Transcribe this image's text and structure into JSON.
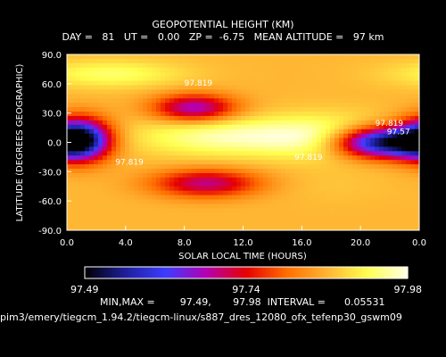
{
  "header": {
    "title": "GEOPOTENTIAL HEIGHT (KM)",
    "subtitle": "DAY =   81   UT =   0.00   ZP =  -6.75   MEAN ALTITUDE =   97 km"
  },
  "footer": {
    "minmax": "MIN,MAX =        97.49,       97.98  INTERVAL =      0.05531",
    "filepath": "pim3/emery/tiegcm_1.94.2/tiegcm-linux/s887_dres_12080_ofx_tefenp30_gswm09"
  },
  "colors": {
    "background": "#000000",
    "text": "#ffffff",
    "colormap": [
      "#ffffff",
      "#000000",
      "#1e1e9a",
      "#3c3cff",
      "#b400b4",
      "#e60000",
      "#ff6e00",
      "#ffb432",
      "#ffff50",
      "#ffffe6"
    ]
  },
  "chart_data": {
    "type": "heatmap",
    "title": "GEOPOTENTIAL HEIGHT (KM)",
    "xlabel": "SOLAR LOCAL TIME (HOURS)",
    "ylabel": "LATITUDE (DEGREES GEOGRAPHIC)",
    "x_ticks": [
      "0.0",
      "4.0",
      "8.0",
      "12.0",
      "16.0",
      "20.0",
      "0.0"
    ],
    "y_ticks": [
      "-90.0",
      "-60.0",
      "-30.0",
      "0.0",
      "30.0",
      "60.0",
      "90.0"
    ],
    "xlim": [
      0,
      24
    ],
    "ylim": [
      -90,
      90
    ],
    "value_range": [
      97.49,
      97.98
    ],
    "contour_interval": 0.05531,
    "contour_labels": [
      "97.819",
      "97.819",
      "97.819",
      "97.819",
      "97.57"
    ],
    "colorbar_ticks": [
      "97.49",
      "97.74",
      "97.98"
    ],
    "features": [
      {
        "x": 0.8,
        "y": 3,
        "value": 97.49,
        "sx": 1.5,
        "sy": 15
      },
      {
        "x": 21.4,
        "y": 0,
        "value": 97.49,
        "sx": 2.3,
        "sy": 11
      },
      {
        "x": 8.7,
        "y": 35,
        "value": 97.66,
        "sx": 2.0,
        "sy": 10
      },
      {
        "x": 9.5,
        "y": -42,
        "value": 97.69,
        "sx": 2.6,
        "sy": 10
      },
      {
        "x": 11.0,
        "y": 6,
        "value": 97.96,
        "sx": 4.5,
        "sy": 14
      },
      {
        "x": 18.0,
        "y": 5,
        "value": 97.95,
        "sx": 3.0,
        "sy": 16
      },
      {
        "x": 3.0,
        "y": 70,
        "value": 97.93,
        "sx": 3.5,
        "sy": 10
      },
      {
        "x": 18.0,
        "y": -45,
        "value": 97.87,
        "sx": 3.0,
        "sy": 12
      }
    ]
  }
}
